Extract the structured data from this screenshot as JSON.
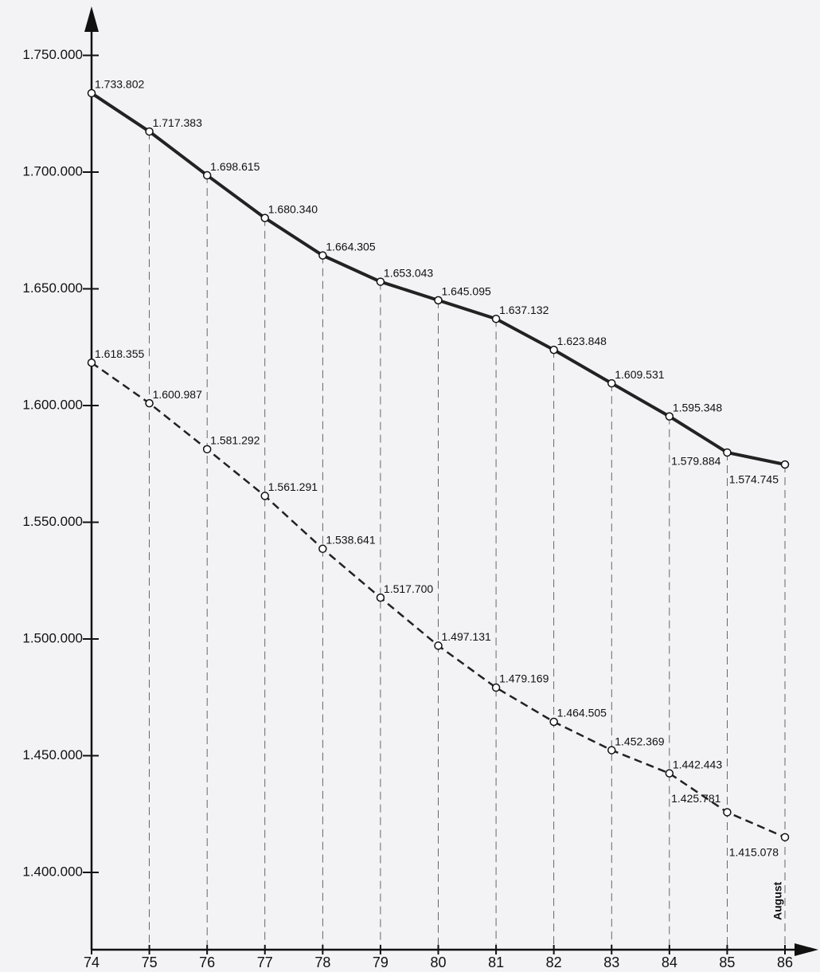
{
  "chart_data": {
    "type": "line",
    "categories": [
      "74",
      "75",
      "76",
      "77",
      "78",
      "79",
      "80",
      "81",
      "82",
      "83",
      "84",
      "85",
      "86"
    ],
    "annotations": [
      "August"
    ],
    "ylim": [
      1367000,
      1770000
    ],
    "yticks": [
      {
        "value": 1400000,
        "label": "1.400.000"
      },
      {
        "value": 1450000,
        "label": "1.450.000"
      },
      {
        "value": 1500000,
        "label": "1.500.000"
      },
      {
        "value": 1550000,
        "label": "1.550.000"
      },
      {
        "value": 1600000,
        "label": "1.600.000"
      },
      {
        "value": 1650000,
        "label": "1.650.000"
      },
      {
        "value": 1700000,
        "label": "1.700.000"
      },
      {
        "value": 1750000,
        "label": "1.750.000"
      }
    ],
    "series": [
      {
        "color": "#222222",
        "dashed": false,
        "values": [
          1733802,
          1717383,
          1698615,
          1680340,
          1664305,
          1653043,
          1645095,
          1637132,
          1623848,
          1609531,
          1595348,
          1579884,
          1574745
        ],
        "value_labels": [
          "1.733.802",
          "1.717.383",
          "1.698.615",
          "1.680.340",
          "1.664.305",
          "1.653.043",
          "1.645.095",
          "1.637.132",
          "1.623.848",
          "1.609.531",
          "1.595.348",
          "1.579.884",
          "1.574.745"
        ]
      },
      {
        "color": "#222222",
        "dashed": true,
        "values": [
          1618355,
          1600987,
          1581292,
          1561291,
          1538641,
          1517700,
          1497131,
          1479169,
          1464505,
          1452369,
          1442443,
          1425781,
          1415078
        ],
        "value_labels": [
          "1.618.355",
          "1.600.987",
          "1.581.292",
          "1.561.291",
          "1.538.641",
          "1.517.700",
          "1.497.131",
          "1.479.169",
          "1.464.505",
          "1.452.369",
          "1.442.443",
          "1.425.781",
          "1.415.078"
        ]
      }
    ]
  }
}
